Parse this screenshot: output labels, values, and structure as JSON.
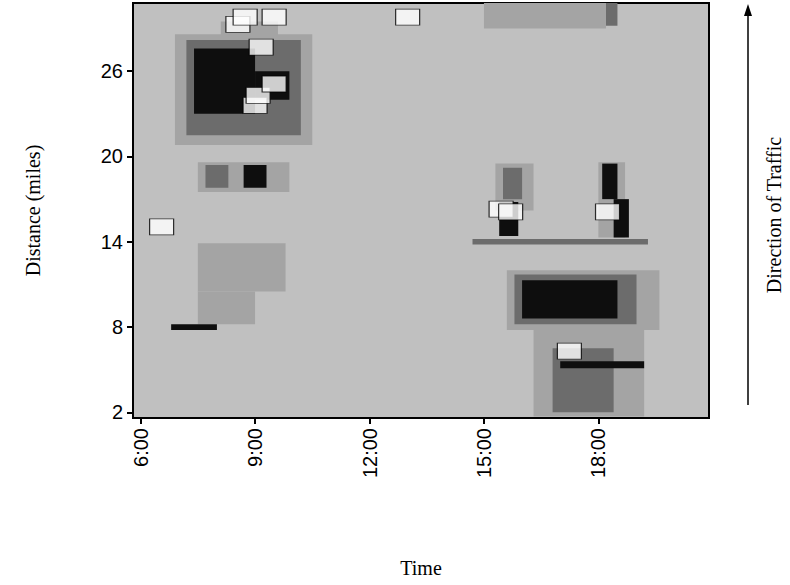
{
  "chart_data": {
    "type": "heatmap",
    "x_label": "Time",
    "y_label": "Distance (miles)",
    "annotation": "Direction of Traffic",
    "xlim": [
      5.8,
      20.9
    ],
    "xticks": [
      {
        "value": 6,
        "label": "6:00"
      },
      {
        "value": 9,
        "label": "9:00"
      },
      {
        "value": 12,
        "label": "12:00"
      },
      {
        "value": 15,
        "label": "15:00"
      },
      {
        "value": 18,
        "label": "18:00"
      }
    ],
    "ylim": [
      1.6,
      30.8
    ],
    "yticks": [
      2,
      8,
      14,
      20,
      26
    ],
    "grid": false,
    "colors": [
      "#c0c0c0",
      "#a4a4a4",
      "#6c6c6c",
      "#0e0e0e"
    ],
    "cells": [
      [
        6.9,
        10.5,
        20.8,
        28.6,
        1
      ],
      [
        7.2,
        10.2,
        21.5,
        28.2,
        2
      ],
      [
        8.1,
        9.6,
        28.2,
        29.5,
        1
      ],
      [
        7.4,
        9.0,
        23.0,
        27.6,
        3
      ],
      [
        9.0,
        9.9,
        24.0,
        26.0,
        3
      ],
      [
        7.5,
        9.9,
        17.5,
        19.6,
        1
      ],
      [
        7.7,
        8.3,
        17.8,
        19.4,
        2
      ],
      [
        8.7,
        9.3,
        17.8,
        19.4,
        3
      ],
      [
        7.5,
        9.8,
        10.5,
        13.9,
        1
      ],
      [
        7.5,
        9.0,
        8.2,
        10.5,
        1
      ],
      [
        6.8,
        8.0,
        7.8,
        8.2,
        3
      ],
      [
        14.7,
        19.3,
        13.8,
        14.2,
        2
      ],
      [
        15.3,
        16.3,
        16.2,
        19.5,
        1
      ],
      [
        15.5,
        16.0,
        17.0,
        19.2,
        2
      ],
      [
        15.4,
        15.9,
        14.4,
        16.8,
        3
      ],
      [
        18.0,
        18.7,
        14.3,
        19.6,
        1
      ],
      [
        18.1,
        18.5,
        17.0,
        19.5,
        3
      ],
      [
        18.4,
        18.8,
        14.3,
        17.0,
        3
      ],
      [
        15.6,
        19.6,
        7.8,
        12.0,
        1
      ],
      [
        15.8,
        19.0,
        8.2,
        11.7,
        2
      ],
      [
        16.0,
        18.5,
        8.6,
        11.3,
        3
      ],
      [
        16.3,
        19.2,
        1.7,
        7.8,
        1
      ],
      [
        16.8,
        18.4,
        2.0,
        6.5,
        2
      ],
      [
        17.0,
        19.2,
        5.1,
        5.6,
        3
      ],
      [
        15.0,
        18.2,
        29.0,
        30.8,
        1
      ],
      [
        18.2,
        18.5,
        29.2,
        30.8,
        2
      ]
    ],
    "incidents": [
      [
        6.55,
        15.05
      ],
      [
        8.55,
        29.3
      ],
      [
        8.74,
        29.8
      ],
      [
        9.5,
        29.8
      ],
      [
        9.16,
        27.7
      ],
      [
        9.0,
        23.6
      ],
      [
        9.08,
        24.3
      ],
      [
        9.5,
        25.1
      ],
      [
        13.0,
        29.8
      ],
      [
        15.45,
        16.3
      ],
      [
        15.7,
        16.1
      ],
      [
        17.24,
        6.3
      ],
      [
        18.24,
        16.1
      ]
    ]
  }
}
